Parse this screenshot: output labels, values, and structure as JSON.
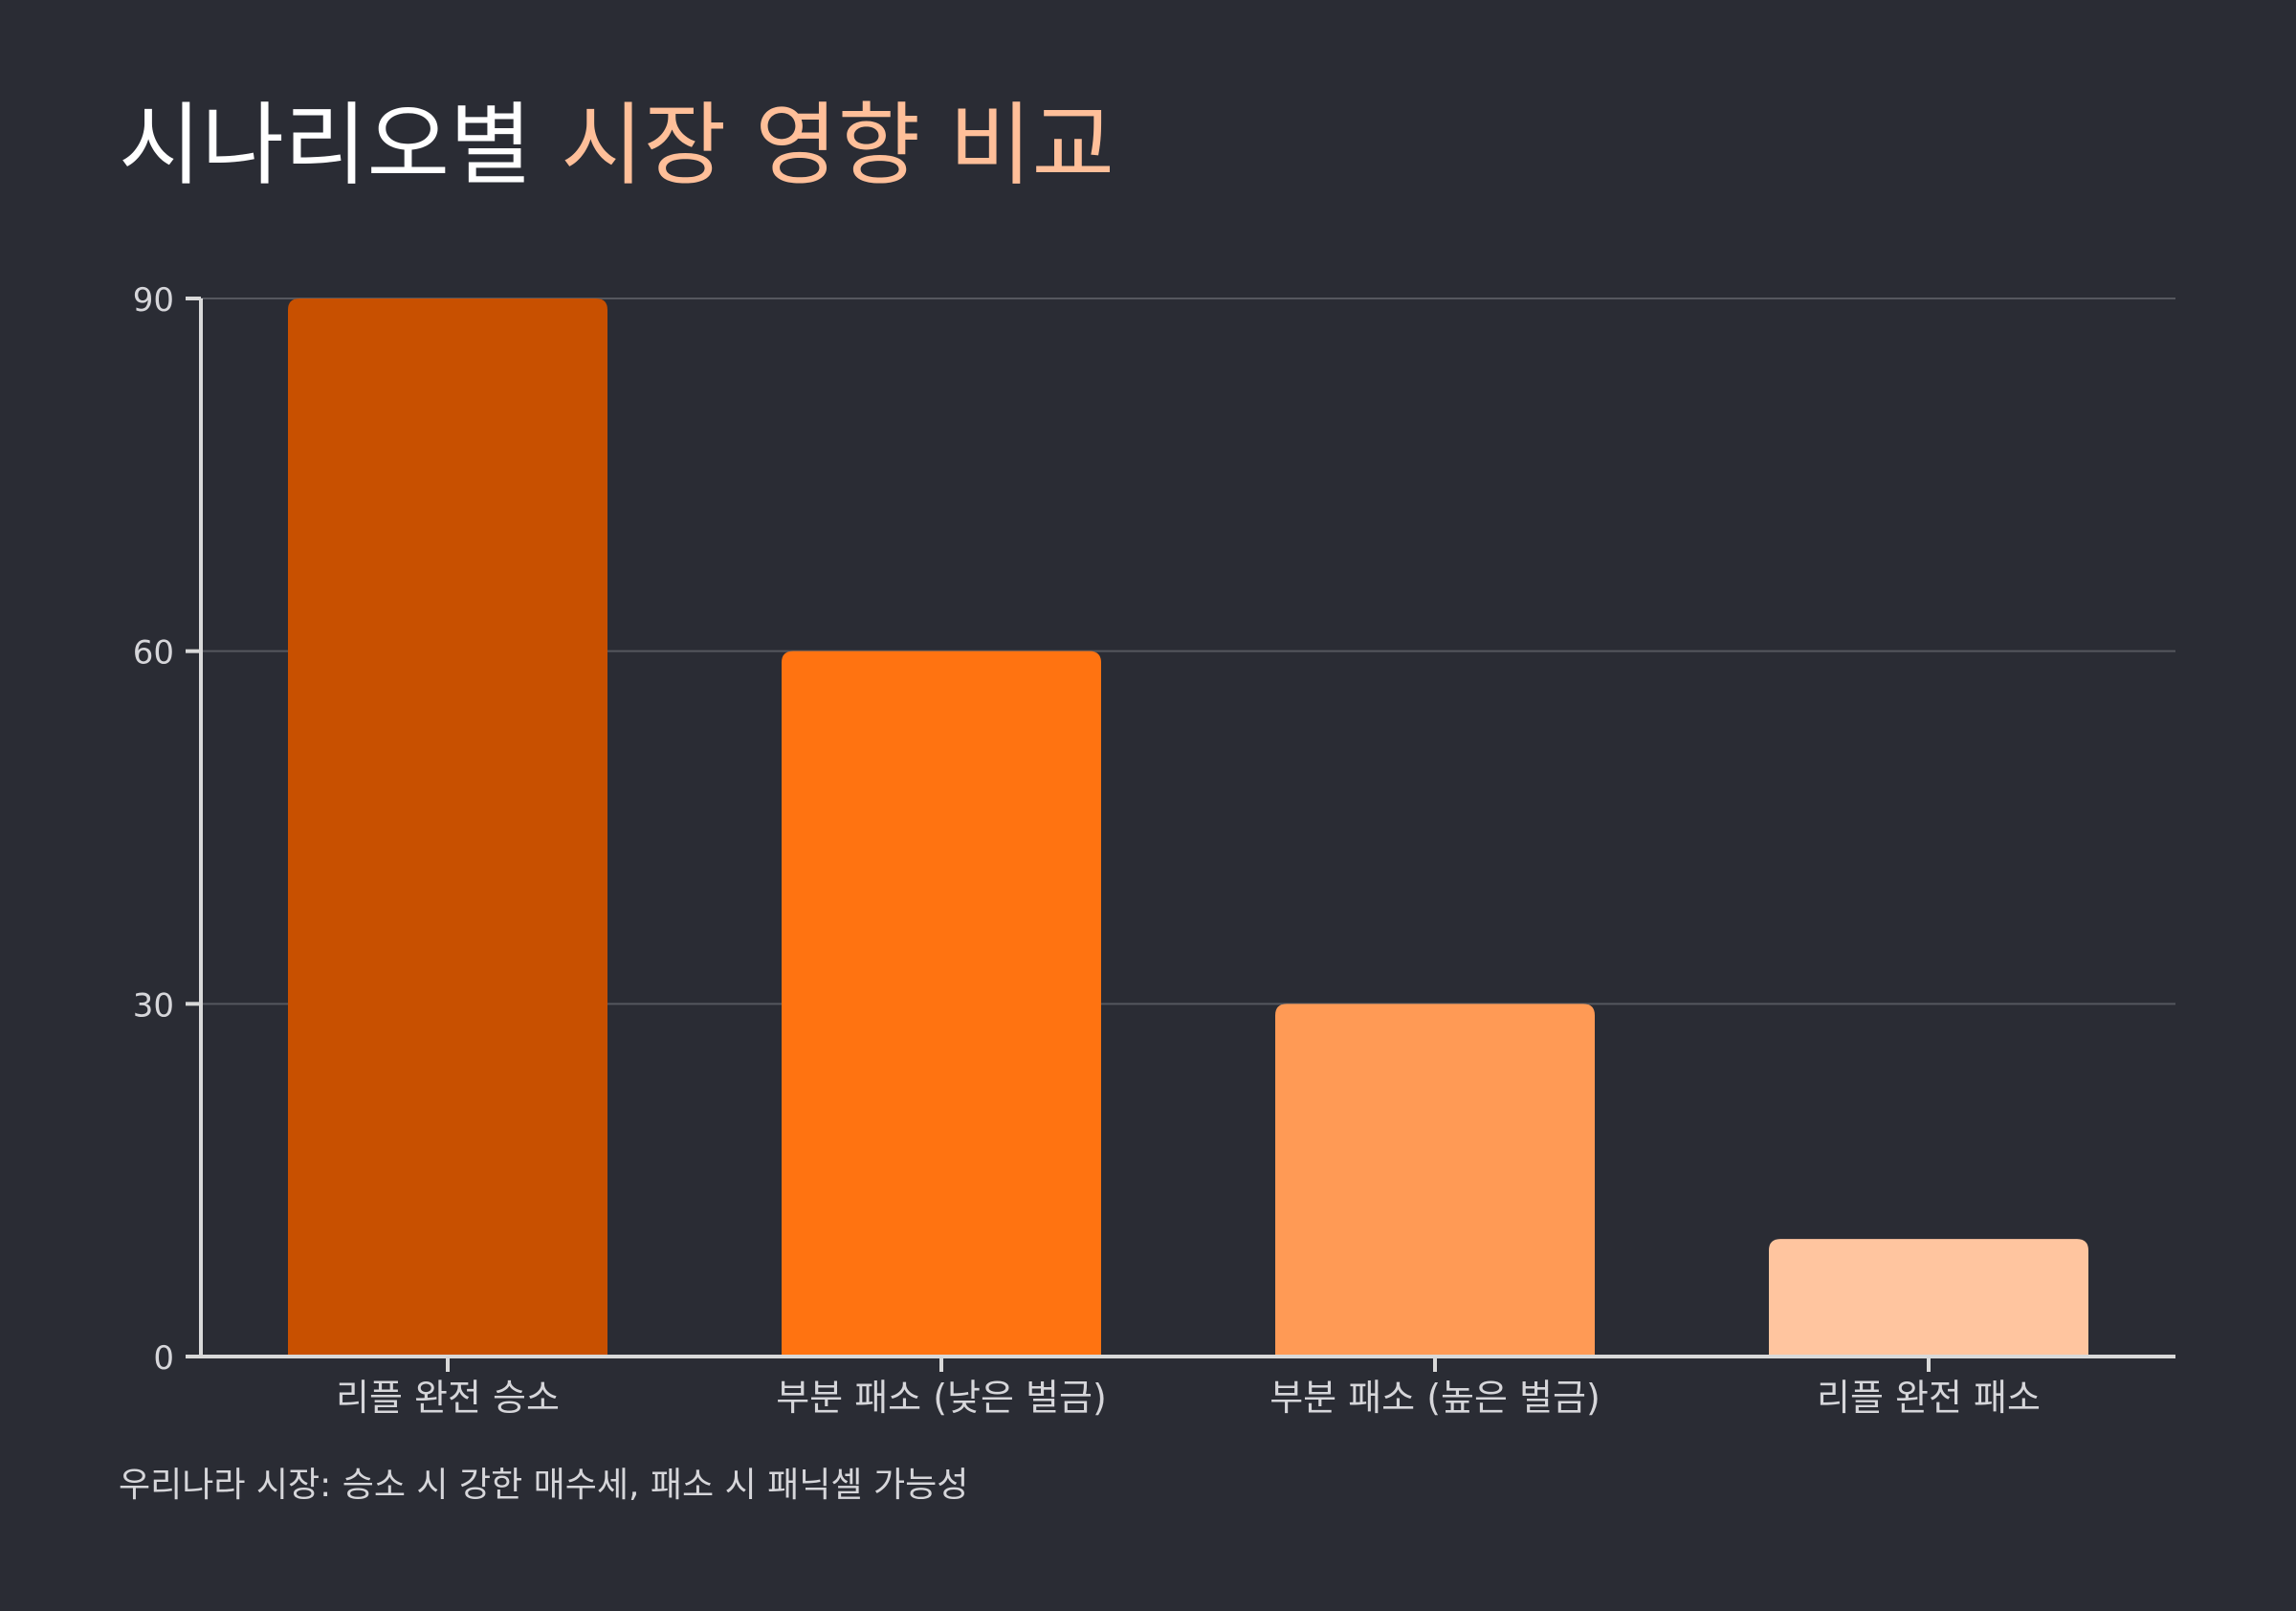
{
  "title": {
    "main": "시나리오별",
    "accent": "시장 영향 비교"
  },
  "footnote": "우리나라 시장: 승소 시 강한 매수세, 패소 시 패닉셀 가능성",
  "colors": {
    "background": "#2a2c34",
    "title_main": "#ffffff",
    "title_accent": "#ffbf99",
    "axis": "#d9d9d9",
    "grid": "#55575e",
    "tick_text": "#d6d6da"
  },
  "chart_data": {
    "type": "bar",
    "title": "시나리오별 시장 영향 비교",
    "xlabel": "",
    "ylabel": "",
    "categories": [
      "리플 완전 승소",
      "부분 패소 (낮은 벌금)",
      "부분 패소 (높은 벌금)",
      "리플 완전 패소"
    ],
    "values": [
      90,
      60,
      30,
      10
    ],
    "bar_colors": [
      "#c85000",
      "#ff7311",
      "#ff9a55",
      "#ffc59f"
    ],
    "ylim": [
      0,
      90
    ],
    "yticks": [
      0,
      30,
      60,
      90
    ],
    "grid": true,
    "legend": "none"
  }
}
